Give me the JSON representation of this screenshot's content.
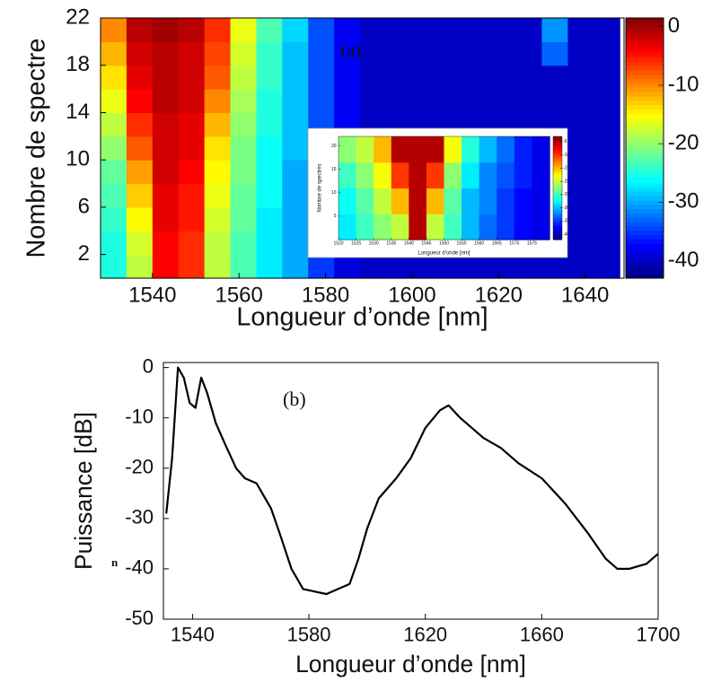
{
  "chart_data": [
    {
      "type": "heatmap",
      "colormap": "jet",
      "xlabel": "Longueur d’onde [nm]",
      "ylabel": "Nombre de spectre",
      "annotation": "(a)",
      "x": [
        1531,
        1537,
        1543,
        1549,
        1555,
        1561,
        1567,
        1573,
        1579,
        1585,
        1591,
        1597,
        1603,
        1609,
        1615,
        1621,
        1627,
        1633,
        1639,
        1645
      ],
      "y": [
        1,
        3,
        5,
        7,
        9,
        11,
        13,
        15,
        17,
        19,
        21
      ],
      "values": [
        [
          -25,
          -18,
          -4,
          -6,
          -18,
          -23,
          -27,
          -30,
          -35,
          -39,
          -40,
          -40,
          -40,
          -40,
          -40,
          -40,
          -40,
          -40,
          -40,
          -40
        ],
        [
          -25,
          -17,
          -4,
          -6,
          -18,
          -23,
          -27,
          -30,
          -35,
          -39,
          -40,
          -40,
          -40,
          -40,
          -40,
          -40,
          -40,
          -40,
          -40,
          -40
        ],
        [
          -24,
          -15,
          -3,
          -5,
          -17,
          -22,
          -27,
          -30,
          -35,
          -39,
          -40,
          -40,
          -40,
          -40,
          -40,
          -40,
          -40,
          -40,
          -40,
          -40
        ],
        [
          -23,
          -13,
          -3,
          -5,
          -16,
          -22,
          -26,
          -30,
          -35,
          -39,
          -40,
          -40,
          -40,
          -40,
          -40,
          -40,
          -40,
          -40,
          -40,
          -40
        ],
        [
          -22,
          -11,
          -2,
          -4,
          -15,
          -21,
          -26,
          -30,
          -35,
          -39,
          -40,
          -40,
          -40,
          -40,
          -40,
          -40,
          -40,
          -40,
          -40,
          -40
        ],
        [
          -20,
          -8,
          -2,
          -3,
          -14,
          -21,
          -26,
          -29,
          -35,
          -39,
          -40,
          -40,
          -40,
          -40,
          -40,
          -40,
          -40,
          -40,
          -40,
          -40
        ],
        [
          -18,
          -6,
          -2,
          -3,
          -12,
          -20,
          -25,
          -29,
          -34,
          -38,
          -40,
          -40,
          -40,
          -40,
          -40,
          -40,
          -40,
          -40,
          -40,
          -40
        ],
        [
          -16,
          -4,
          -1,
          -2,
          -10,
          -19,
          -25,
          -29,
          -34,
          -38,
          -40,
          -40,
          -40,
          -40,
          -40,
          -40,
          -40,
          -40,
          -40,
          -40
        ],
        [
          -14,
          -3,
          -1,
          -2,
          -8,
          -18,
          -24,
          -29,
          -34,
          -38,
          -40,
          -40,
          -40,
          -40,
          -40,
          -40,
          -40,
          -40,
          -40,
          -40
        ],
        [
          -12,
          -2,
          -1,
          -2,
          -7,
          -17,
          -24,
          -29,
          -34,
          -38,
          -40,
          -40,
          -40,
          -40,
          -40,
          -40,
          -40,
          -33,
          -40,
          -40
        ],
        [
          -10,
          -1,
          0,
          -1,
          -6,
          -16,
          -23,
          -28,
          -34,
          -38,
          -40,
          -40,
          -40,
          -40,
          -40,
          -40,
          -40,
          -31,
          -40,
          -40
        ]
      ],
      "xlim": [
        1528,
        1649
      ],
      "xticks": [
        1540,
        1560,
        1580,
        1600,
        1620,
        1640
      ],
      "ylim": [
        0,
        22
      ],
      "yticks": [
        2,
        6,
        10,
        14,
        18,
        22
      ],
      "clim": [
        -43,
        1.5
      ],
      "cticks": [
        0,
        -10,
        -20,
        -30,
        -40
      ]
    },
    {
      "type": "heatmap",
      "colormap": "jet",
      "xlabel": "Longueur d'onde [nm]",
      "ylabel": "Nombre de spectres",
      "x": [
        1522.5,
        1527.5,
        1532.5,
        1537.5,
        1542.5,
        1547.5,
        1552.5,
        1557.5,
        1562.5,
        1567.5,
        1572.5,
        1577.5
      ],
      "y": [
        2.75,
        8.25,
        13.75,
        19.25
      ],
      "values": [
        [
          -28,
          -25,
          -22,
          -20,
          -5,
          -20,
          -25,
          -30,
          -33,
          -35,
          -37,
          -38
        ],
        [
          -27,
          -24,
          -20,
          -15,
          -5,
          -15,
          -24,
          -30,
          -32,
          -35,
          -37,
          -38
        ],
        [
          -25,
          -22,
          -18,
          -10,
          -5,
          -10,
          -22,
          -28,
          -32,
          -34,
          -36,
          -38
        ],
        [
          -22,
          -20,
          -15,
          -5,
          -5,
          -5,
          -18,
          -26,
          -30,
          -33,
          -36,
          -38
        ]
      ],
      "xlim": [
        1520,
        1580
      ],
      "xticks": [
        1520,
        1525,
        1530,
        1535,
        1540,
        1545,
        1550,
        1555,
        1560,
        1565,
        1570,
        1575
      ],
      "ylim": [
        0,
        22
      ],
      "yticks": [
        5,
        10,
        15,
        20
      ],
      "clim": [
        -42,
        -3
      ],
      "cticks": [
        -5,
        -10,
        -15,
        -20,
        -25,
        -30,
        -35,
        -40
      ]
    },
    {
      "type": "line",
      "color": "#000000",
      "xlabel": "Longueur d’onde [nm]",
      "ylabel": "Puissance [dB]",
      "annotation": "(b)",
      "side_text": "n",
      "x": [
        1531,
        1533,
        1535,
        1537,
        1539,
        1541,
        1543,
        1545,
        1548,
        1551,
        1555,
        1558,
        1562,
        1565,
        1567,
        1570,
        1574,
        1578,
        1582,
        1586,
        1590,
        1594,
        1597,
        1600,
        1604,
        1610,
        1615,
        1620,
        1625,
        1628,
        1632,
        1636,
        1640,
        1646,
        1652,
        1660,
        1668,
        1676,
        1682,
        1686,
        1690,
        1696,
        1700
      ],
      "values": [
        -29,
        -18,
        0,
        -2,
        -7,
        -8,
        -2,
        -5,
        -11,
        -15,
        -20,
        -22,
        -23,
        -26,
        -28,
        -33,
        -40,
        -44,
        -44.5,
        -45,
        -44,
        -43,
        -38,
        -32,
        -26,
        -22,
        -18,
        -12,
        -8.5,
        -7.5,
        -10,
        -12,
        -14,
        -16,
        -19,
        -22,
        -27,
        -33,
        -38,
        -40,
        -40,
        -39,
        -37
      ],
      "xlim": [
        1530,
        1700
      ],
      "xticks": [
        1540,
        1580,
        1620,
        1660,
        1700
      ],
      "ylim": [
        -50,
        1
      ],
      "yticks": [
        0,
        -10,
        -20,
        -30,
        -40,
        -50
      ]
    }
  ]
}
